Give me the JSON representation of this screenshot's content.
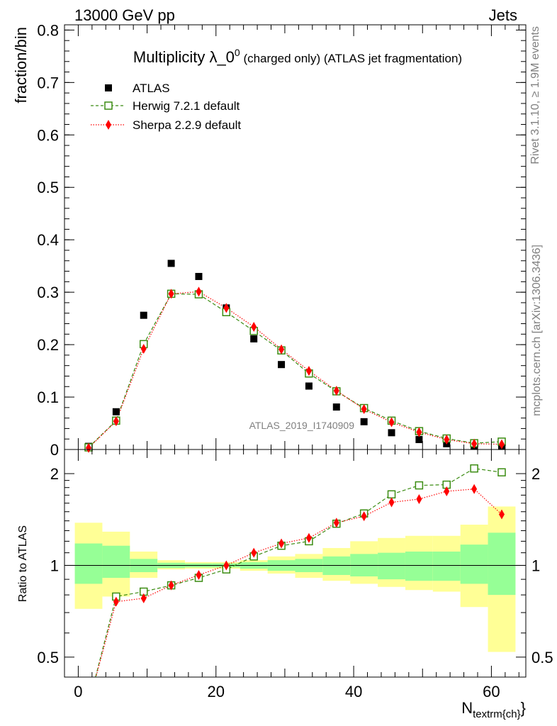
{
  "header": {
    "left": "13000 GeV pp",
    "right": "Jets"
  },
  "side": {
    "rivet": "Rivet 3.1.10, ≥ 1.9M events",
    "mcplots": "mcplots.cern.ch [arXiv:1306.3436]"
  },
  "chart_data": [
    {
      "type": "scatter",
      "title_main": "Multiplicity λ_0",
      "title_sup": "0",
      "title_rest": " (charged only) (ATLAS jet fragmentation)",
      "ylabel": "fraction/bin",
      "watermark": "ATLAS_2019_I1740909",
      "xlim": [
        -2,
        65
      ],
      "ylim": [
        0,
        0.81
      ],
      "yticks": [
        0,
        0.1,
        0.2,
        0.3,
        0.4,
        0.5,
        0.6,
        0.7,
        0.8
      ],
      "ytick_labels": [
        "0",
        "0.1",
        "0.2",
        "0.3",
        "0.4",
        "0.5",
        "0.6",
        "0.7",
        "0.8"
      ],
      "x": [
        1.5,
        5.5,
        9.5,
        13.5,
        17.5,
        21.5,
        25.5,
        29.5,
        33.5,
        37.5,
        41.5,
        45.5,
        49.5,
        53.5,
        57.5,
        61.5
      ],
      "series": [
        {
          "name": "ATLAS",
          "color": "#000000",
          "marker": "square-filled",
          "values": [
            0.006,
            0.072,
            0.256,
            0.355,
            0.33,
            0.27,
            0.211,
            0.162,
            0.121,
            0.081,
            0.053,
            0.032,
            0.019,
            0.011,
            0.006,
            0.006
          ]
        },
        {
          "name": "Herwig 7.2.1 default",
          "color": "#3b8c12",
          "marker": "square-open",
          "line": "dashed",
          "values": [
            0.004,
            0.055,
            0.201,
            0.297,
            0.296,
            0.262,
            0.226,
            0.189,
            0.145,
            0.111,
            0.079,
            0.055,
            0.035,
            0.021,
            0.012,
            0.015
          ]
        },
        {
          "name": "Sherpa 2.2.9 default",
          "color": "#ff0000",
          "marker": "diamond-filled",
          "line": "dotted",
          "values": [
            0.003,
            0.054,
            0.192,
            0.297,
            0.301,
            0.27,
            0.234,
            0.191,
            0.15,
            0.112,
            0.077,
            0.052,
            0.033,
            0.019,
            0.011,
            0.01
          ]
        }
      ]
    },
    {
      "type": "line",
      "ylabel": "Ratio to ATLAS",
      "xlabel_main": "N",
      "xlabel_sub": "textrm{ch}",
      "xlabel_close": "}",
      "xlim": [
        -2,
        65
      ],
      "ylim": [
        0.43,
        2.4
      ],
      "log_y": true,
      "xticks": [
        0,
        20,
        40,
        60
      ],
      "xtick_labels": [
        "0",
        "20",
        "40",
        "60"
      ],
      "yticks": [
        0.5,
        1,
        2
      ],
      "ytick_labels": [
        "0.5",
        "1",
        "2"
      ],
      "reference_line": 1,
      "band_bins": [
        [
          -0.5,
          3.5
        ],
        [
          3.5,
          7.5
        ],
        [
          7.5,
          11.5
        ],
        [
          11.5,
          15.5
        ],
        [
          15.5,
          19.5
        ],
        [
          19.5,
          23.5
        ],
        [
          23.5,
          27.5
        ],
        [
          27.5,
          31.5
        ],
        [
          31.5,
          35.5
        ],
        [
          35.5,
          39.5
        ],
        [
          39.5,
          43.5
        ],
        [
          43.5,
          47.5
        ],
        [
          47.5,
          51.5
        ],
        [
          51.5,
          55.5
        ],
        [
          55.5,
          59.5
        ],
        [
          59.5,
          63.5
        ]
      ],
      "band_inner": [
        [
          0.87,
          1.18
        ],
        [
          0.91,
          1.16
        ],
        [
          0.95,
          1.05
        ],
        [
          0.98,
          1.02
        ],
        [
          0.985,
          1.015
        ],
        [
          0.985,
          1.015
        ],
        [
          0.975,
          1.025
        ],
        [
          0.96,
          1.04
        ],
        [
          0.95,
          1.05
        ],
        [
          0.93,
          1.07
        ],
        [
          0.92,
          1.09
        ],
        [
          0.9,
          1.1
        ],
        [
          0.89,
          1.11
        ],
        [
          0.89,
          1.11
        ],
        [
          0.87,
          1.17
        ],
        [
          0.8,
          1.28
        ]
      ],
      "band_outer": [
        [
          0.72,
          1.38
        ],
        [
          0.79,
          1.29
        ],
        [
          0.91,
          1.11
        ],
        [
          0.97,
          1.04
        ],
        [
          0.975,
          1.025
        ],
        [
          0.975,
          1.025
        ],
        [
          0.96,
          1.04
        ],
        [
          0.94,
          1.07
        ],
        [
          0.91,
          1.09
        ],
        [
          0.89,
          1.14
        ],
        [
          0.87,
          1.2
        ],
        [
          0.85,
          1.23
        ],
        [
          0.83,
          1.25
        ],
        [
          0.82,
          1.25
        ],
        [
          0.73,
          1.36
        ],
        [
          0.52,
          1.56
        ]
      ],
      "band_inner_color": "#96ff96",
      "band_outer_color": "#ffff96",
      "x": [
        1.5,
        5.5,
        9.5,
        13.5,
        17.5,
        21.5,
        25.5,
        29.5,
        33.5,
        37.5,
        41.5,
        45.5,
        49.5,
        53.5,
        57.5,
        61.5
      ],
      "series": [
        {
          "name": "Herwig 7.2.1 default",
          "color": "#3b8c12",
          "marker": "square-open",
          "line": "dashed",
          "values": [
            0.35,
            0.79,
            0.82,
            0.86,
            0.91,
            0.97,
            1.07,
            1.16,
            1.2,
            1.37,
            1.48,
            1.71,
            1.83,
            1.84,
            2.08,
            2.02
          ]
        },
        {
          "name": "Sherpa 2.2.9 default",
          "color": "#ff0000",
          "marker": "diamond-filled",
          "line": "dotted",
          "values": [
            0.35,
            0.76,
            0.78,
            0.86,
            0.93,
            1.0,
            1.1,
            1.18,
            1.23,
            1.38,
            1.45,
            1.61,
            1.65,
            1.75,
            1.78,
            1.47
          ]
        }
      ]
    }
  ]
}
